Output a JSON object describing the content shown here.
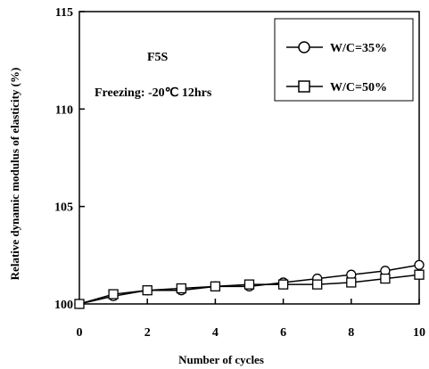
{
  "chart_data": {
    "type": "line",
    "title": "",
    "xlabel": "Number of cycles",
    "ylabel": "Relative dynamic modulus of elasticity (%)",
    "xlim": [
      0,
      10
    ],
    "ylim": [
      100,
      115
    ],
    "xticks": [
      0,
      2,
      4,
      6,
      8,
      10
    ],
    "yticks": [
      100,
      105,
      110,
      115
    ],
    "grid": false,
    "legend_position": "top-right",
    "annotations": [
      "F5S",
      "Freezing: -20℃ 12hrs"
    ],
    "x": [
      0,
      1,
      2,
      3,
      4,
      5,
      6,
      7,
      8,
      9,
      10
    ],
    "series": [
      {
        "name": "W/C=35%",
        "marker": "circle",
        "values": [
          100.0,
          100.4,
          100.7,
          100.7,
          100.9,
          100.9,
          101.1,
          101.3,
          101.5,
          101.7,
          102.0
        ]
      },
      {
        "name": "W/C=50%",
        "marker": "square",
        "values": [
          100.0,
          100.5,
          100.7,
          100.8,
          100.9,
          101.0,
          101.0,
          101.0,
          101.1,
          101.3,
          101.5
        ]
      }
    ]
  }
}
